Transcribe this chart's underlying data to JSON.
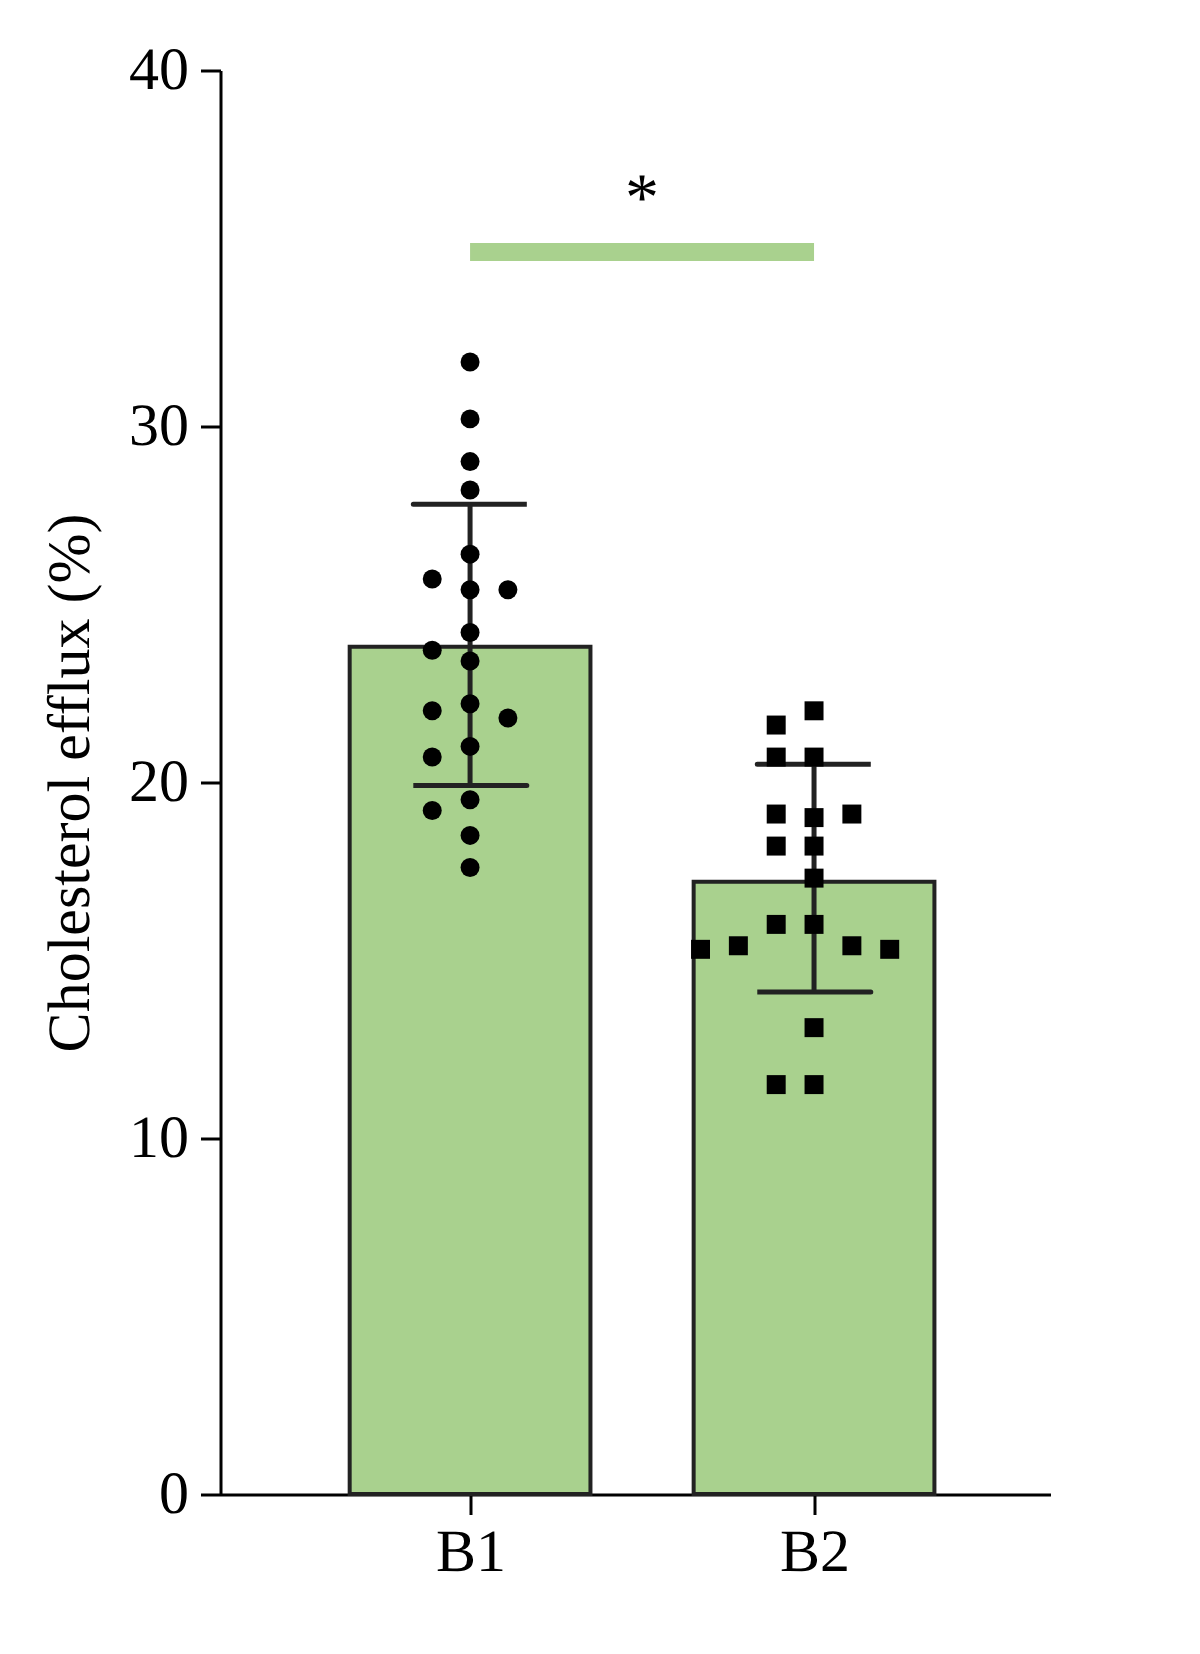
{
  "chart_data": {
    "type": "bar",
    "categories": [
      "B1",
      "B2"
    ],
    "ylabel": "Cholesterol efflux (%)",
    "ylim": [
      0,
      40
    ],
    "yticks": [
      0,
      10,
      20,
      30,
      40
    ],
    "grid": false,
    "annotations": [
      "*"
    ],
    "series": [
      {
        "color": "#a9d18e",
        "values": [
          23.8,
          17.2
        ],
        "errors": [
          [
            19.9,
            27.8
          ],
          [
            14.1,
            20.5
          ]
        ]
      },
      {
        "type": "scatter",
        "color": "#000000",
        "marker": "circle",
        "x": [
          "B1",
          "B1",
          "B1",
          "B1",
          "B1",
          "B1",
          "B1",
          "B1",
          "B1",
          "B1",
          "B1",
          "B1",
          "B1",
          "B1",
          "B1",
          "B1",
          "B1",
          "B1",
          "B1",
          "B1"
        ],
        "values": [
          31.8,
          30.2,
          29.0,
          28.2,
          26.4,
          25.7,
          25.4,
          25.4,
          24.2,
          23.7,
          23.4,
          22.2,
          22.0,
          21.8,
          21.0,
          20.7,
          19.5,
          19.2,
          18.5,
          17.6
        ]
      },
      {
        "type": "scatter",
        "color": "#000000",
        "marker": "square",
        "x": [
          "B2",
          "B2",
          "B2",
          "B2",
          "B2",
          "B2",
          "B2",
          "B2",
          "B2",
          "B2",
          "B2",
          "B2",
          "B2",
          "B2",
          "B2",
          "B2",
          "B2",
          "B2",
          "B2"
        ],
        "values": [
          22.0,
          21.6,
          20.7,
          20.7,
          19.0,
          19.1,
          19.1,
          18.2,
          18.2,
          17.3,
          16.0,
          16.0,
          15.4,
          15.4,
          15.3,
          15.3,
          13.1,
          11.5,
          11.5
        ]
      }
    ]
  }
}
